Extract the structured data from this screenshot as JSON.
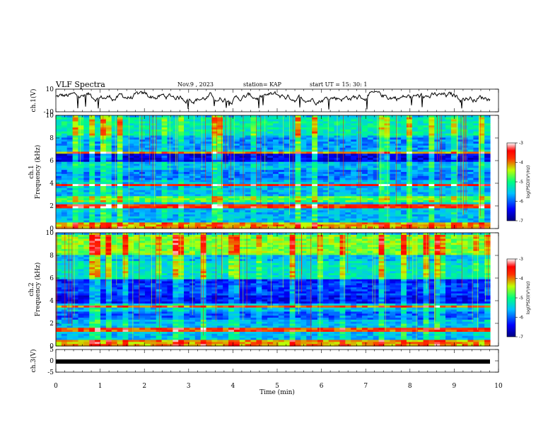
{
  "header": {
    "title": "VLF Spectra",
    "date": "Nov.9 , 2023",
    "station": "station= KAP",
    "start": "start UT = 15: 30: 1"
  },
  "chart_data": [
    {
      "type": "line",
      "ylabel": "ch.1(V)",
      "ylim": [
        -10,
        10
      ],
      "yticks": [
        "10",
        "-10"
      ],
      "xlim": [
        0,
        10
      ],
      "note": "broadband waveform, roughly -4..8 V"
    },
    {
      "type": "heatmap",
      "ylabel_lines": [
        "ch.1",
        "Frequency (kHz)"
      ],
      "ylim": [
        0,
        10
      ],
      "yticks": [
        "0",
        "2",
        "4",
        "6",
        "8",
        "10"
      ],
      "xlim": [
        0,
        10
      ],
      "colorbar": {
        "label": "log(PSD)(V²/Hz)",
        "ticks": [
          "-3",
          "-4",
          "-5",
          "-6",
          "-7"
        ]
      }
    },
    {
      "type": "heatmap",
      "ylabel_lines": [
        "ch.2",
        "Frequency (kHz)"
      ],
      "ylim": [
        0,
        10
      ],
      "yticks": [
        "0",
        "2",
        "4",
        "6",
        "8",
        "10"
      ],
      "xlim": [
        0,
        10
      ],
      "colorbar": {
        "label": "log(PSD)(V²/Hz)",
        "ticks": [
          "-3",
          "-4",
          "-5",
          "-6",
          "-7"
        ]
      }
    },
    {
      "type": "line",
      "ylabel": "ch.3(V)",
      "ylim": [
        -5,
        5
      ],
      "yticks": [
        "5",
        "0",
        "-5"
      ],
      "xlim": [
        0,
        10
      ],
      "note": "thick constant trace near -1.5 V"
    }
  ],
  "xaxis": {
    "label": "Time (min)",
    "ticks": [
      "0",
      "1",
      "2",
      "3",
      "4",
      "5",
      "6",
      "7",
      "8",
      "9",
      "10"
    ]
  }
}
